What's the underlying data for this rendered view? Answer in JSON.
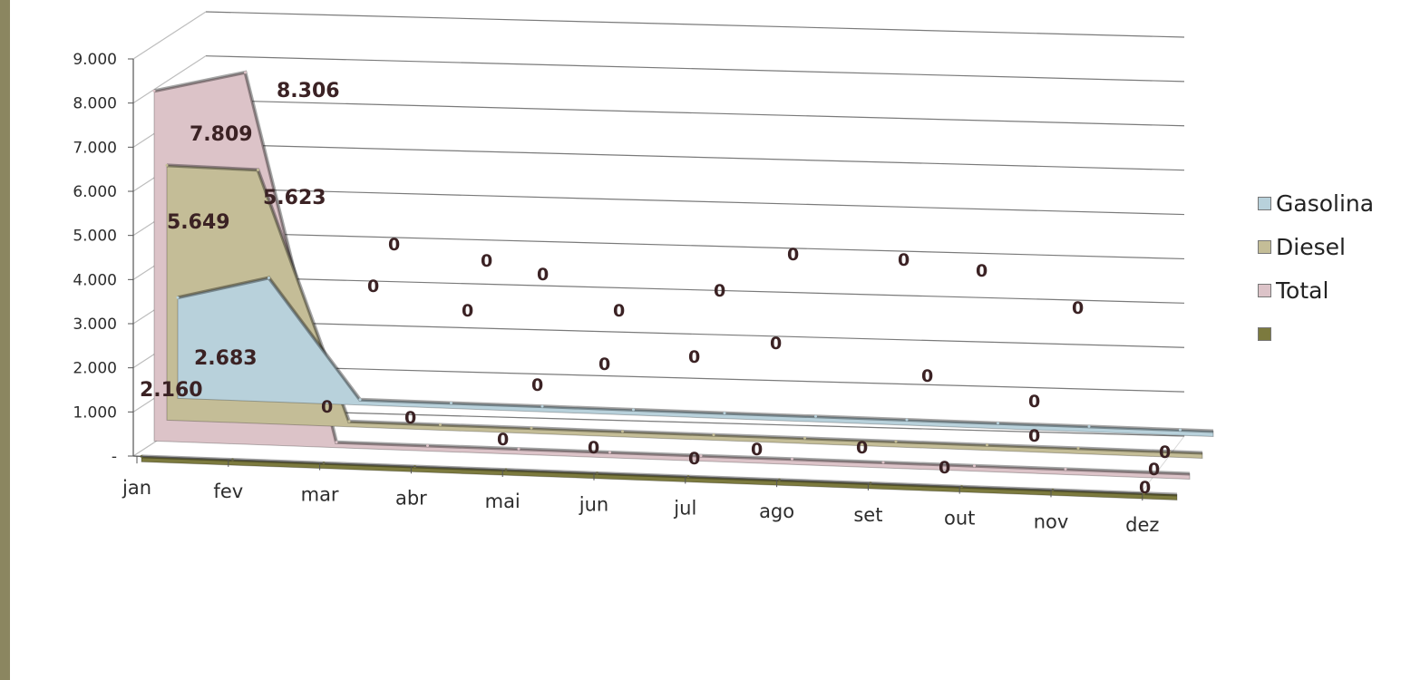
{
  "chart_data": {
    "type": "area",
    "categories": [
      "jan",
      "fev",
      "mar",
      "abr",
      "mai",
      "jun",
      "jul",
      "ago",
      "set",
      "out",
      "nov",
      "dez"
    ],
    "series": [
      {
        "name": "Gasolina",
        "values": [
          2160,
          2683,
          0,
          0,
          0,
          0,
          0,
          0,
          0,
          0,
          0,
          0
        ],
        "color": "#b8d1db",
        "labels": [
          "2.160",
          "2.683",
          "0",
          "0",
          "0",
          "0",
          "0",
          "0",
          "0",
          "0",
          "0",
          "0"
        ]
      },
      {
        "name": "Diesel",
        "values": [
          5649,
          5623,
          0,
          0,
          0,
          0,
          0,
          0,
          0,
          0,
          0,
          0
        ],
        "color": "#c4bd97",
        "labels": [
          "5.649",
          "5.623",
          "0",
          "0",
          "0",
          "0",
          "0",
          "0",
          "0",
          "0",
          "0",
          "0"
        ]
      },
      {
        "name": "Total",
        "values": [
          7809,
          8306,
          0,
          0,
          0,
          0,
          0,
          0,
          0,
          0,
          0,
          0
        ],
        "color": "#dcc3c8",
        "labels": [
          "7.809",
          "8.306",
          "0",
          "0",
          "0",
          "0",
          "0",
          "0",
          "0",
          "0",
          "0",
          "0"
        ]
      },
      {
        "name": "",
        "values": [
          0,
          0,
          0,
          0,
          0,
          0,
          0,
          0,
          0,
          0,
          0,
          0
        ],
        "color": "#7c7a3e",
        "labels": [
          "",
          "",
          "0",
          "0",
          "0",
          "0",
          "0",
          "0",
          "0",
          "0",
          "0",
          "0"
        ]
      }
    ],
    "y_ticks": [
      "-",
      "1.000",
      "2.000",
      "3.000",
      "4.000",
      "5.000",
      "6.000",
      "7.000",
      "8.000",
      "9.000"
    ],
    "ylim": [
      0,
      9000
    ],
    "grid": true,
    "legend_position": "right",
    "title": "",
    "xlabel": "",
    "ylabel": ""
  },
  "scatter_zero_labels": [
    "0",
    "0",
    "0",
    "0",
    "0",
    "0",
    "0",
    "0",
    "0",
    "0",
    "0",
    "0",
    "0",
    "0",
    "0",
    "0",
    "0",
    "0",
    "0",
    "0",
    "0",
    "0"
  ]
}
